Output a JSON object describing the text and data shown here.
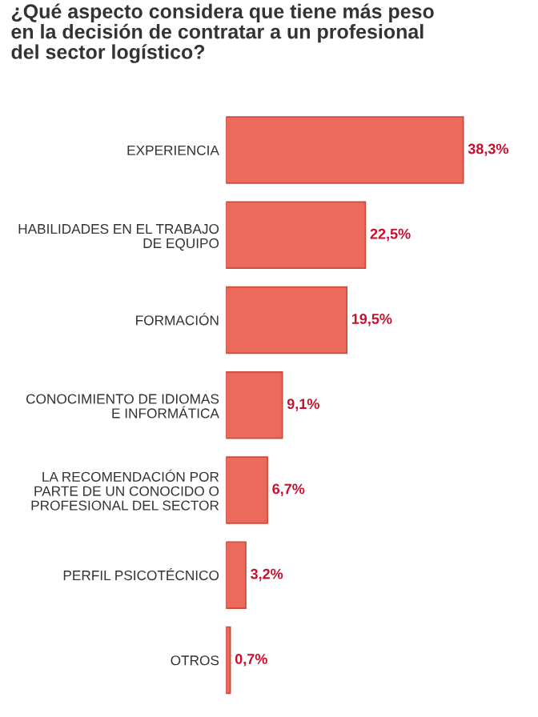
{
  "chart_data": {
    "type": "bar",
    "orientation": "horizontal",
    "title": "¿Qué aspecto considera que tiene más peso\nen la decisión de contratar a un profesional\ndel sector logístico?",
    "categories": [
      "EXPERIENCIA",
      "HABILIDADES EN EL TRABAJO\nDE EQUIPO",
      "FORMACIÓN",
      "CONOCIMIENTO DE IDIOMAS\nE INFORMÁTICA",
      "LA RECOMENDACIÓN POR\nPARTE DE UN CONOCIDO O\nPROFESIONAL DEL SECTOR",
      "PERFIL PSICOTÉCNICO",
      "OTROS"
    ],
    "values": [
      38.3,
      22.5,
      19.5,
      9.1,
      6.7,
      3.2,
      0.7
    ],
    "value_labels": [
      "38,3%",
      "22,5%",
      "19,5%",
      "9,1%",
      "6,7%",
      "3,2%",
      "0,7%"
    ],
    "color": "#ec6a5c"
  }
}
